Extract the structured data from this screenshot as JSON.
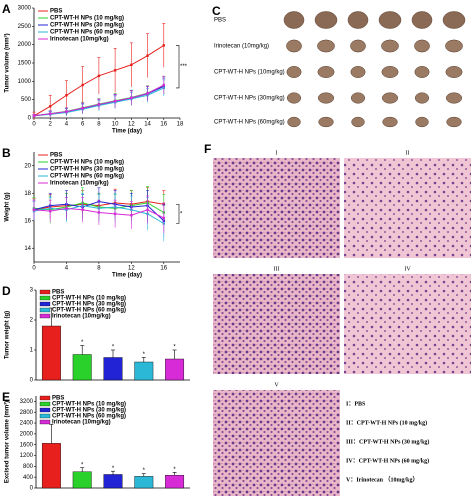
{
  "chart_data": [
    {
      "type": "line",
      "panel": "A",
      "x_label": "Time (day)",
      "y_label": "Tumor volume (mm³)",
      "annotation": "***",
      "xlim": [
        0,
        18
      ],
      "xticks": [
        0,
        2,
        4,
        6,
        8,
        10,
        12,
        14,
        16,
        18
      ],
      "ylim": [
        0,
        3000
      ],
      "yticks": [
        0,
        500,
        1000,
        1500,
        2000,
        2500,
        3000
      ],
      "x": [
        0,
        2,
        4,
        6,
        8,
        10,
        12,
        14,
        16
      ],
      "series": [
        {
          "name": "PBS",
          "color": "#e8201d",
          "values": [
            60,
            320,
            620,
            900,
            1150,
            1300,
            1450,
            1700,
            1980
          ],
          "errors": [
            100,
            300,
            400,
            500,
            500,
            600,
            600,
            600,
            600
          ]
        },
        {
          "name": "CPT-WT-H NPs (10 mg/kg)",
          "color": "#2bd12b",
          "values": [
            60,
            120,
            180,
            280,
            380,
            470,
            560,
            680,
            880
          ],
          "errors": [
            40,
            80,
            100,
            150,
            150,
            200,
            200,
            200,
            250
          ]
        },
        {
          "name": "CPT-WT-H NPs (30 mg/kg)",
          "color": "#2323d6",
          "values": [
            60,
            110,
            170,
            260,
            360,
            450,
            540,
            660,
            860
          ],
          "errors": [
            40,
            80,
            100,
            140,
            150,
            180,
            200,
            200,
            230
          ]
        },
        {
          "name": "CPT-WT-H NPs (60 mg/kg)",
          "color": "#2bb8d6",
          "values": [
            60,
            100,
            150,
            240,
            340,
            430,
            520,
            620,
            820
          ],
          "errors": [
            40,
            70,
            100,
            130,
            140,
            170,
            180,
            190,
            220
          ]
        },
        {
          "name": "Irinotecan (10mg/kg)",
          "color": "#d62bd6",
          "values": [
            60,
            115,
            175,
            270,
            370,
            460,
            550,
            670,
            900
          ],
          "errors": [
            40,
            80,
            100,
            140,
            150,
            190,
            200,
            200,
            240
          ]
        }
      ]
    },
    {
      "type": "line",
      "panel": "B",
      "x_label": "Time (day)",
      "y_label": "Weight (g)",
      "annotation": "*",
      "xlim": [
        0,
        18
      ],
      "xticks": [
        0,
        4,
        8,
        12,
        16
      ],
      "ylim": [
        13,
        21
      ],
      "yticks": [
        14,
        16,
        18,
        20
      ],
      "x": [
        0,
        2,
        4,
        6,
        8,
        10,
        12,
        14,
        16
      ],
      "series": [
        {
          "name": "PBS",
          "color": "#e8201d",
          "values": [
            16.8,
            17,
            17.1,
            17.2,
            17.1,
            17.3,
            17.2,
            17.4,
            17.2
          ],
          "errors": [
            0.8,
            0.9,
            0.9,
            1,
            0.9,
            1,
            1,
            1,
            1
          ]
        },
        {
          "name": "CPT-WT-H NPs (10 mg/kg)",
          "color": "#2bd12b",
          "values": [
            16.9,
            16.8,
            17,
            17.3,
            17,
            16.9,
            17.1,
            17.3,
            16.6
          ],
          "errors": [
            0.8,
            1,
            1,
            1.1,
            1,
            1,
            1.1,
            1.2,
            1.3
          ]
        },
        {
          "name": "CPT-WT-H NPs (30 mg/kg)",
          "color": "#2323d6",
          "values": [
            16.8,
            17.1,
            17.2,
            17,
            17.4,
            17.2,
            17,
            17.1,
            16
          ],
          "errors": [
            0.7,
            0.9,
            1,
            0.9,
            1,
            1,
            1,
            1.1,
            1.2
          ]
        },
        {
          "name": "CPT-WT-H NPs (60 mg/kg)",
          "color": "#2bb8d6",
          "values": [
            16.7,
            16.9,
            16.8,
            17.1,
            16.9,
            17,
            16.8,
            16.5,
            15.8
          ],
          "errors": [
            0.7,
            0.8,
            0.9,
            0.9,
            1,
            1,
            1,
            1.2,
            1.3
          ]
        },
        {
          "name": "Irinotecan (10mg/kg)",
          "color": "#d62bd6",
          "values": [
            16.8,
            16.7,
            16.9,
            16.8,
            16.6,
            16.5,
            16.4,
            16.8,
            16.2
          ],
          "errors": [
            0.7,
            0.8,
            0.8,
            0.9,
            0.9,
            1,
            1,
            1,
            1.1
          ]
        }
      ]
    },
    {
      "type": "bar",
      "panel": "D",
      "y_label": "Tumor weight (g)",
      "ylim": [
        0,
        3
      ],
      "yticks": [
        0,
        1,
        2,
        3
      ],
      "series": [
        {
          "name": "PBS",
          "color": "#e8201d",
          "values": [
            1.8
          ],
          "errors": [
            0.6
          ]
        },
        {
          "name": "CPT-WT-H NPs (10 mg/kg)",
          "color": "#2bd12b",
          "values": [
            0.85
          ],
          "errors": [
            0.3
          ],
          "annotation": "*"
        },
        {
          "name": "CPT-WT-H NPs (30 mg/kg)",
          "color": "#2323d6",
          "values": [
            0.75
          ],
          "errors": [
            0.25
          ],
          "annotation": "*"
        },
        {
          "name": "CPT-WT-H NPs (60 mg/kg)",
          "color": "#2bb8d6",
          "values": [
            0.6
          ],
          "errors": [
            0.15
          ],
          "annotation": "*"
        },
        {
          "name": "Irinotecan (10mg/kg)",
          "color": "#d62bd6",
          "values": [
            0.7
          ],
          "errors": [
            0.3
          ],
          "annotation": "*"
        }
      ]
    },
    {
      "type": "bar",
      "panel": "E",
      "y_label": "Excised tumor volume (mm³)",
      "ylim": [
        0,
        3400
      ],
      "yticks": [
        0,
        400,
        800,
        1200,
        1600,
        2000,
        2400,
        2800,
        3200
      ],
      "series": [
        {
          "name": "PBS",
          "color": "#e8201d",
          "values": [
            1650
          ],
          "errors": [
            700
          ]
        },
        {
          "name": "CPT-WT-H NPs (10 mg/kg)",
          "color": "#2bd12b",
          "values": [
            600
          ],
          "errors": [
            150
          ],
          "annotation": "*"
        },
        {
          "name": "CPT-WT-H NPs (30 mg/kg)",
          "color": "#2323d6",
          "values": [
            500
          ],
          "errors": [
            120
          ],
          "annotation": "*"
        },
        {
          "name": "CPT-WT-H NPs (60 mg/kg)",
          "color": "#2bb8d6",
          "values": [
            430
          ],
          "errors": [
            100
          ],
          "annotation": "*"
        },
        {
          "name": "Irinotecan (10mg/kg)",
          "color": "#d62bd6",
          "values": [
            470
          ],
          "errors": [
            110
          ],
          "annotation": "*"
        }
      ]
    }
  ],
  "panel_c": {
    "panel": "C",
    "rows": [
      "PBS",
      "Irinotecan (10mg/kg)",
      "CPT-WT-H NPs (10mg/kg)",
      "CPT-WT-H NPs (30mg/kg)",
      "CPT-WT-H NPs (60mg/kg)"
    ]
  },
  "panel_f": {
    "panel": "F",
    "images": [
      "I",
      "II",
      "III",
      "IV",
      "V"
    ],
    "legend": [
      "I：PBS",
      "II：CPT-WT-H NPs (10 mg/kg)",
      "III：CPT-WT-H NPs (30 mg/kg)",
      "IV：CPT-WT-H NPs (60 mg/kg)",
      "V：Irinotecan （10mg/kg）"
    ]
  }
}
